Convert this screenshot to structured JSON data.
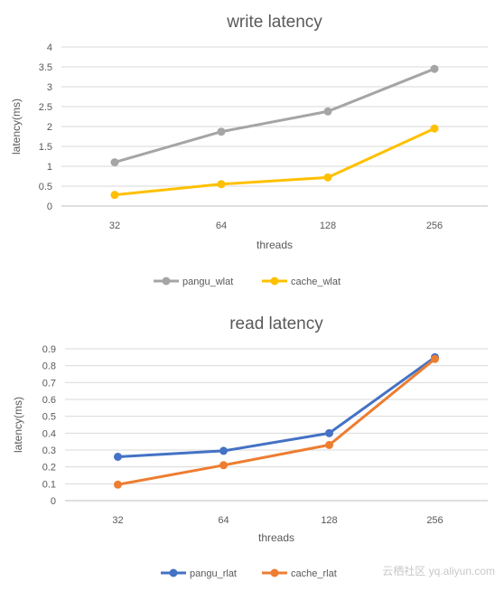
{
  "chart_data": [
    {
      "type": "line",
      "title": "write latency",
      "xlabel": "threads",
      "ylabel": "latency(ms)",
      "categories": [
        "32",
        "64",
        "128",
        "256"
      ],
      "y_ticks": [
        "0",
        "0.5",
        "1",
        "1.5",
        "2",
        "2.5",
        "3",
        "3.5",
        "4"
      ],
      "ylim": [
        0,
        4
      ],
      "grid": true,
      "legend_position": "bottom",
      "series": [
        {
          "name": "pangu_wlat",
          "color": "#a5a5a5",
          "values": [
            1.1,
            1.87,
            2.38,
            3.45
          ]
        },
        {
          "name": "cache_wlat",
          "color": "#ffc000",
          "values": [
            0.28,
            0.55,
            0.72,
            1.95
          ]
        }
      ]
    },
    {
      "type": "line",
      "title": "read latency",
      "xlabel": "threads",
      "ylabel": "latency(ms)",
      "categories": [
        "32",
        "64",
        "128",
        "256"
      ],
      "y_ticks": [
        "0",
        "0.1",
        "0.2",
        "0.3",
        "0.4",
        "0.5",
        "0.6",
        "0.7",
        "0.8",
        "0.9"
      ],
      "ylim": [
        0,
        0.9
      ],
      "grid": true,
      "legend_position": "bottom",
      "series": [
        {
          "name": "pangu_rlat",
          "color": "#4472c4",
          "values": [
            0.26,
            0.295,
            0.4,
            0.85
          ]
        },
        {
          "name": "cache_rlat",
          "color": "#ed7d31",
          "values": [
            0.095,
            0.21,
            0.33,
            0.84
          ]
        }
      ]
    }
  ],
  "watermark": "云栖社区 yq.aliyun.com"
}
